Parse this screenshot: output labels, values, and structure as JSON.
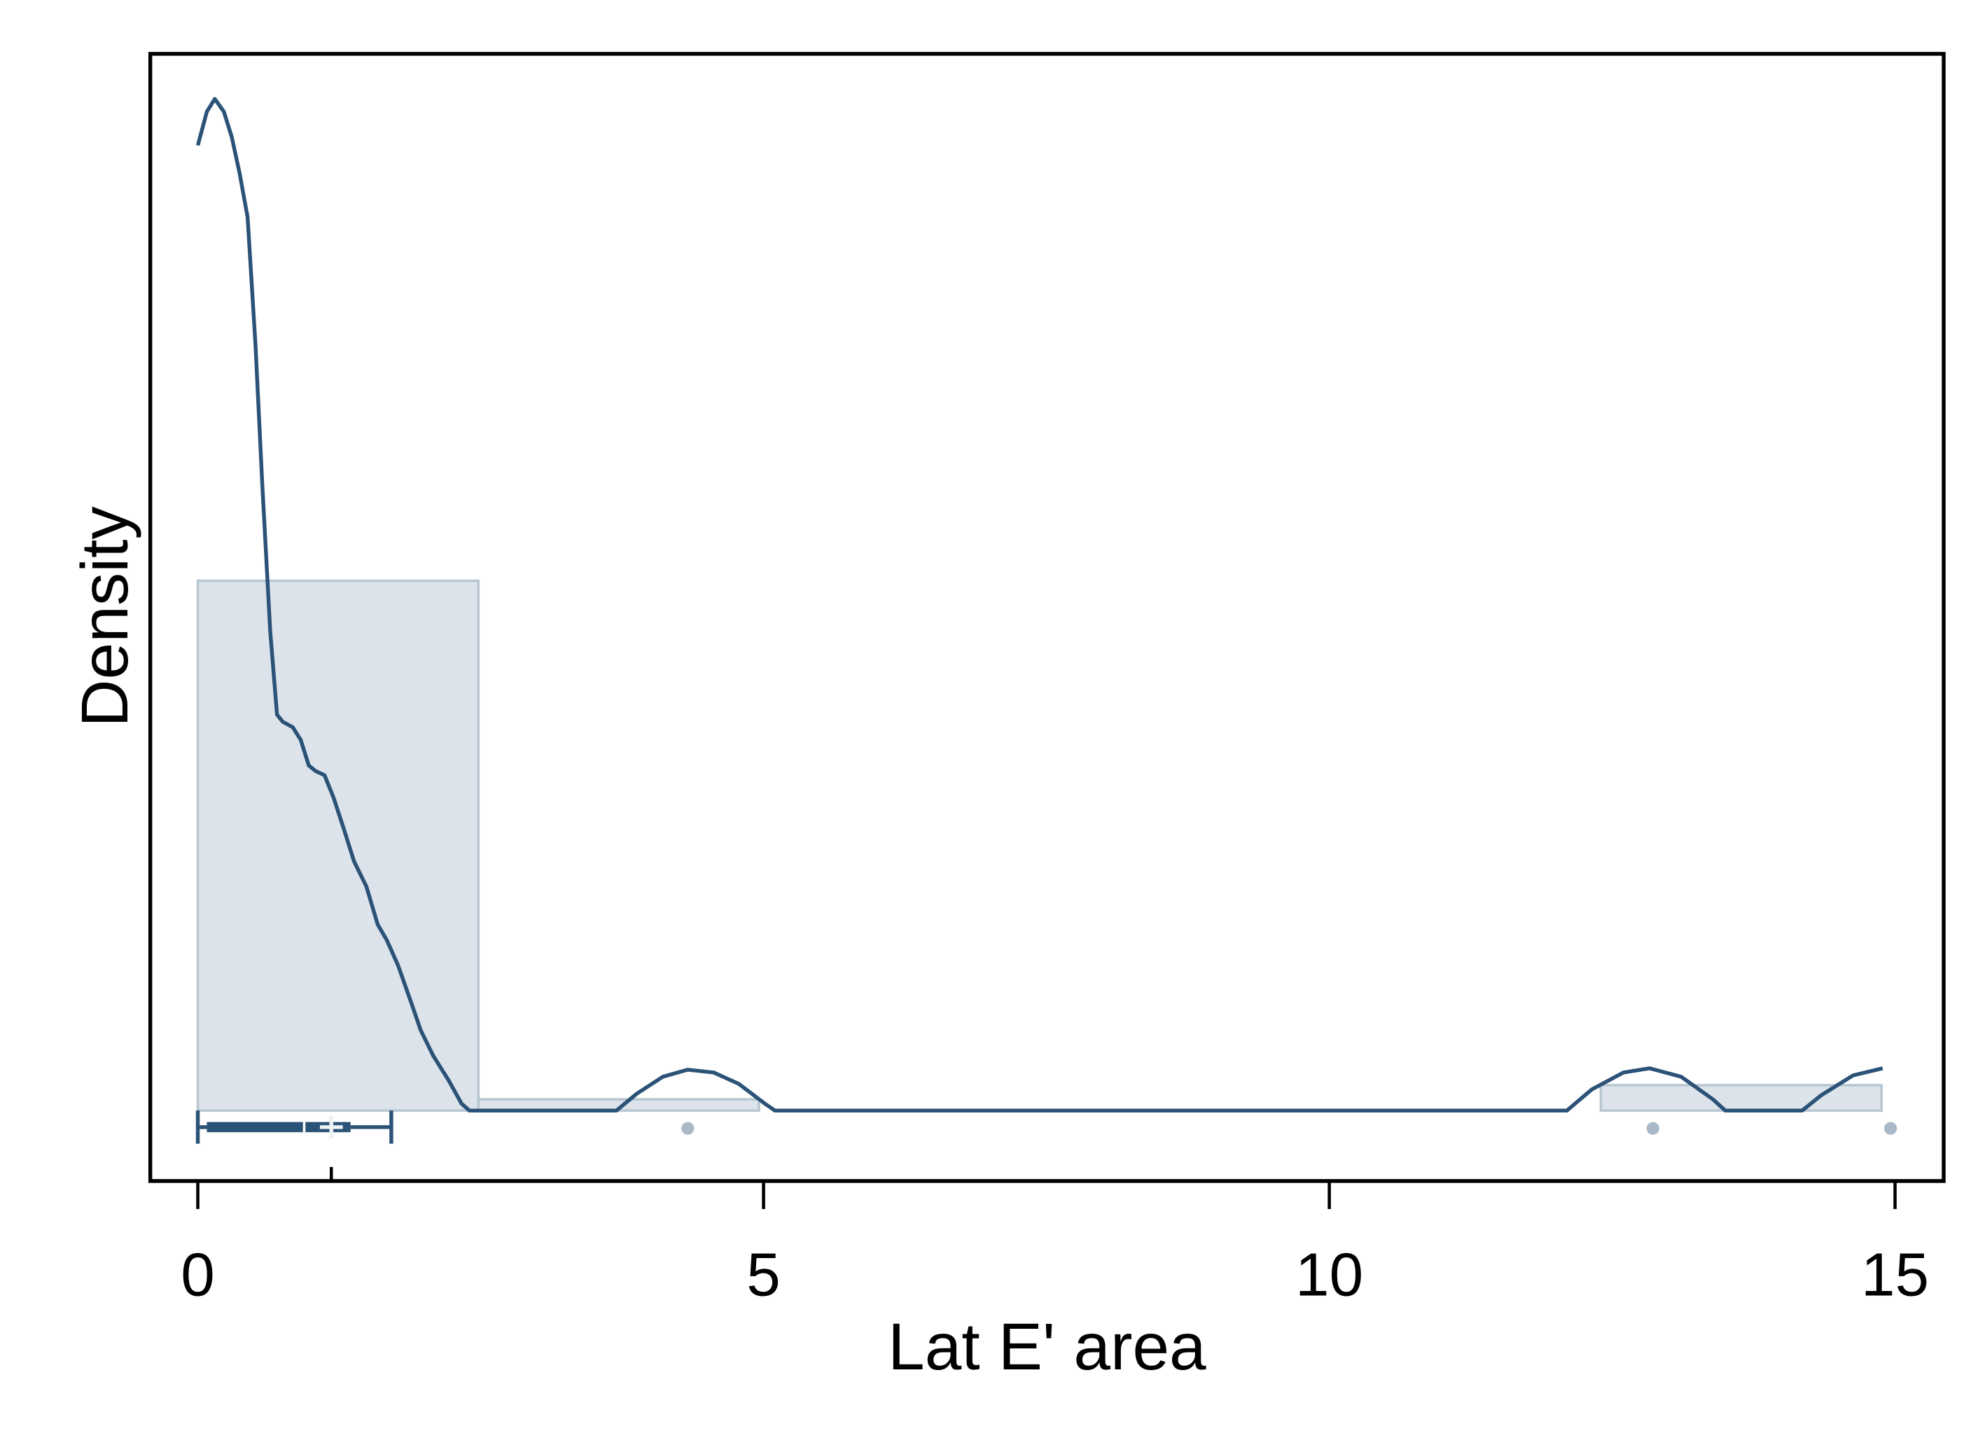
{
  "chart_data": {
    "type": "histogram",
    "x_label": "Lat E' area",
    "y_label": "Density",
    "bins": [
      0,
      2.48,
      4.96,
      7.44,
      9.92,
      12.4,
      14.88
    ],
    "values": [
      0.376,
      0.008,
      0,
      0,
      0,
      0.018
    ],
    "color": "#dce3ea",
    "edge_color": "#b9c7d2",
    "xlim": [
      -0.42,
      15.43
    ],
    "ylim": [
      -0.05,
      0.75
    ],
    "xticks": [
      0,
      5,
      10,
      15
    ],
    "density": {
      "color": "#2b5277",
      "x": [
        0,
        0.08,
        0.15,
        0.23,
        0.3,
        0.37,
        0.44,
        0.51,
        0.57,
        0.64,
        0.7,
        0.75,
        0.84,
        0.91,
        0.98,
        1.04,
        1.12,
        1.2,
        1.29,
        1.38,
        1.49,
        1.59,
        1.67,
        1.77,
        1.88,
        1.97,
        2.08,
        2.22,
        2.33,
        2.4,
        3.7,
        3.88,
        4.11,
        4.33,
        4.56,
        4.78,
        5.01,
        5.1,
        12.1,
        12.32,
        12.6,
        12.83,
        13.11,
        13.39,
        13.5,
        14.18,
        14.35,
        14.63,
        14.89
      ],
      "values": [
        0.685,
        0.709,
        0.718,
        0.709,
        0.691,
        0.665,
        0.634,
        0.543,
        0.444,
        0.34,
        0.281,
        0.276,
        0.272,
        0.263,
        0.245,
        0.241,
        0.238,
        0.222,
        0.2,
        0.177,
        0.159,
        0.132,
        0.121,
        0.103,
        0.078,
        0.057,
        0.039,
        0.021,
        0.005,
        0,
        0,
        0.012,
        0.024,
        0.029,
        0.027,
        0.019,
        0.005,
        0,
        0,
        0.015,
        0.027,
        0.03,
        0.024,
        0.008,
        0,
        0,
        0.011,
        0.025,
        0.03
      ]
    },
    "box": {
      "color": "#2b5277",
      "min": 0,
      "q1": 0.08,
      "median": 0.94,
      "q3": 1.35,
      "max": 1.71,
      "mean": 1.18
    },
    "outliers": {
      "color": "#a9b9c8",
      "x": [
        4.33,
        12.86,
        14.96
      ]
    }
  }
}
